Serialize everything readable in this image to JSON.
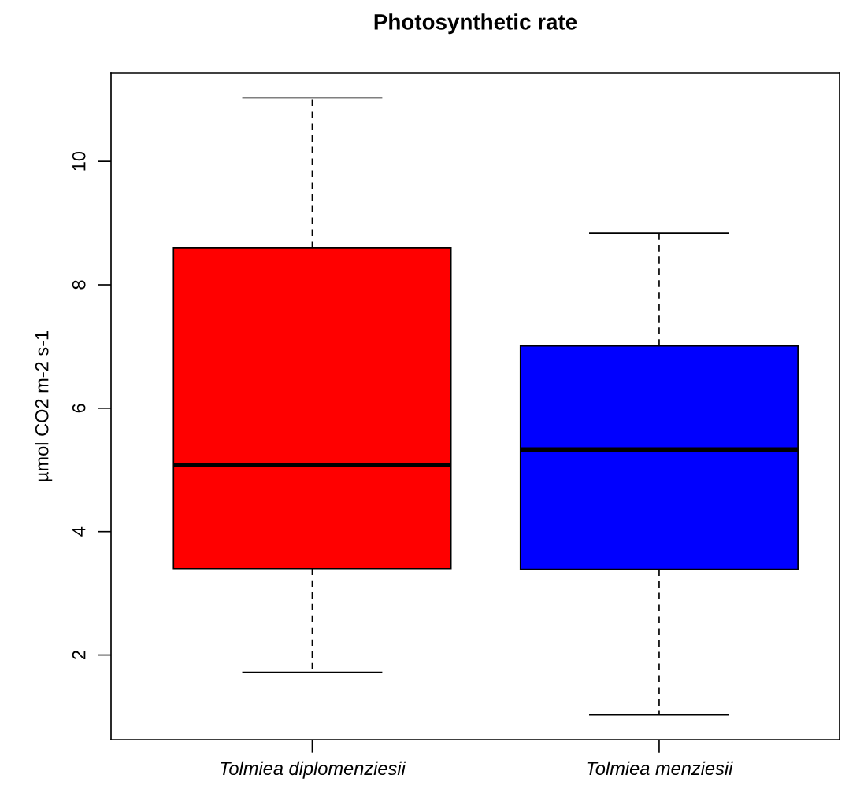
{
  "chart_data": {
    "type": "box",
    "title": "Photosynthetic rate",
    "ylabel": "µmol CO2 m-2 s-1",
    "categories": [
      "Tolmiea diplomenziesii",
      "Tolmiea menziesii"
    ],
    "colors": [
      "#ff0000",
      "#0000ff"
    ],
    "boxes": [
      {
        "low": 1.72,
        "q1": 3.4,
        "median": 5.08,
        "q3": 8.6,
        "high": 11.03
      },
      {
        "low": 1.03,
        "q1": 3.39,
        "median": 5.33,
        "q3": 7.01,
        "high": 8.84
      }
    ],
    "ylim": [
      0.63,
      11.43
    ],
    "yticks": [
      2,
      4,
      6,
      8,
      10
    ],
    "grid": false,
    "line_style": "dashed"
  }
}
